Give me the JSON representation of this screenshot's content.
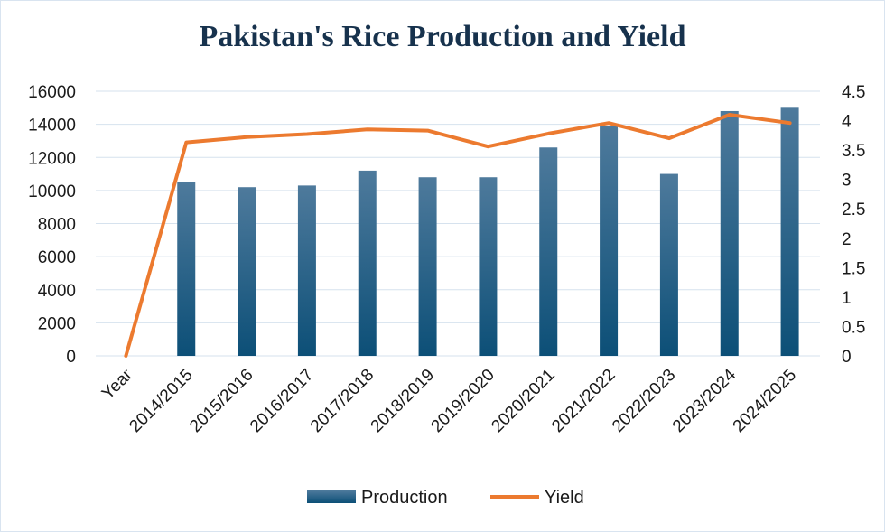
{
  "chart_data": {
    "type": "bar",
    "title": "Pakistan's Rice Production and Yield",
    "categories": [
      "Year",
      "2014/2015",
      "2015/2016",
      "2016/2017",
      "2017/2018",
      "2018/2019",
      "2019/2020",
      "2020/2021",
      "2021/2022",
      "2022/2023",
      "2023/2024",
      "2024/2025"
    ],
    "series": [
      {
        "name": "Production",
        "type": "bar",
        "axis": "left",
        "values": [
          0,
          10500,
          10200,
          10300,
          11200,
          10800,
          10800,
          12600,
          13900,
          11000,
          14800,
          15000
        ]
      },
      {
        "name": "Yield",
        "type": "line",
        "axis": "right",
        "values": [
          0,
          3.63,
          3.72,
          3.77,
          3.85,
          3.83,
          3.56,
          3.78,
          3.96,
          3.7,
          4.1,
          3.96
        ]
      }
    ],
    "ylim": [
      0,
      16000
    ],
    "yticks": [
      "0",
      "2000",
      "4000",
      "6000",
      "8000",
      "10000",
      "12000",
      "14000",
      "16000"
    ],
    "y2lim": [
      0,
      4.5
    ],
    "y2ticks": [
      "0",
      "0.5",
      "1",
      "1.5",
      "2",
      "2.5",
      "3",
      "3.5",
      "4",
      "4.5"
    ],
    "xlabel": "",
    "ylabel": "",
    "y2label": "",
    "grid": true,
    "legend": "bottom",
    "colors": {
      "bar_top": "#4e7a9c",
      "bar_bottom": "#0c4f77",
      "line": "#ec7a2f",
      "grid": "#d6e2ee",
      "title": "#17324d"
    }
  }
}
